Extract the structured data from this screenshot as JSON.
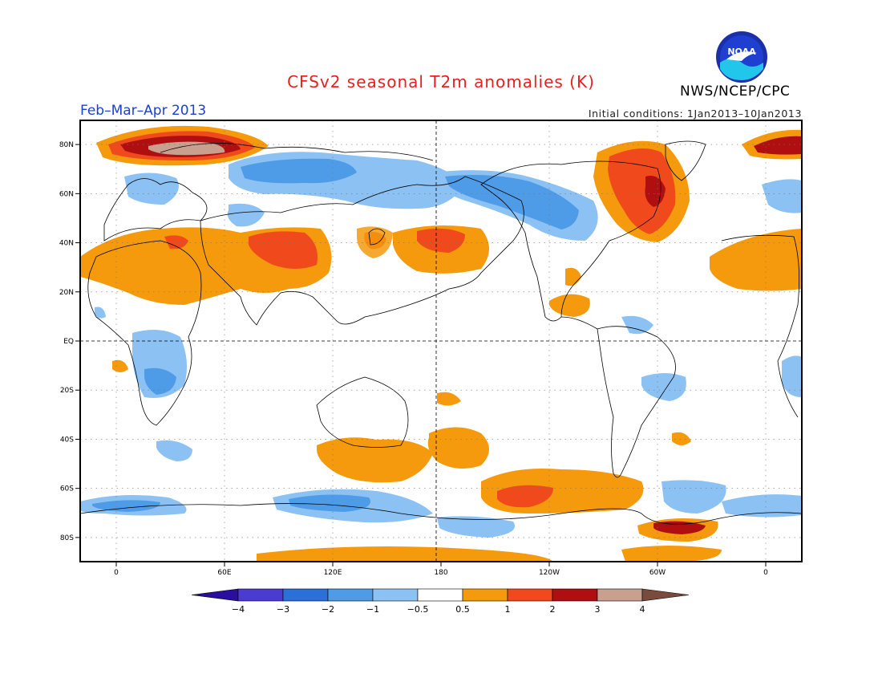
{
  "title": "CFSv2 seasonal T2m anomalies (K)",
  "org": "NWS/NCEP/CPC",
  "season": "Feb–Mar–Apr 2013",
  "initial_conditions": "Initial conditions: 1Jan2013–10Jan2013",
  "logo_text": "NOAA",
  "lat_labels": [
    "80N",
    "60N",
    "40N",
    "20N",
    "EQ",
    "20S",
    "40S",
    "60S",
    "80S"
  ],
  "lat_values": [
    80,
    60,
    40,
    20,
    0,
    -20,
    -40,
    -60,
    -80
  ],
  "lon_labels": [
    "0",
    "60E",
    "120E",
    "180",
    "120W",
    "60W",
    "0"
  ],
  "lon_values": [
    0,
    60,
    120,
    180,
    240,
    300,
    360
  ],
  "colorbar": {
    "labels": [
      "−4",
      "−3",
      "−2",
      "−1",
      "−0.5",
      "0.5",
      "1",
      "2",
      "3",
      "4"
    ],
    "colors": [
      "#2a0e9e",
      "#4a3cd0",
      "#2b6fd8",
      "#4e9be8",
      "#8cc1f4",
      "#ffffff",
      "#f59a0c",
      "#f04a1c",
      "#b00f12",
      "#c9a08e",
      "#7a4a3c"
    ]
  },
  "colors": {
    "title": "#e8201f",
    "season": "#1a40d8",
    "warm": "#f59a0c",
    "hot": "#f04a1c",
    "very_hot": "#b00f12",
    "extreme": "#c9a08e",
    "cool": "#8cc1f4",
    "cold": "#4e9be8"
  }
}
